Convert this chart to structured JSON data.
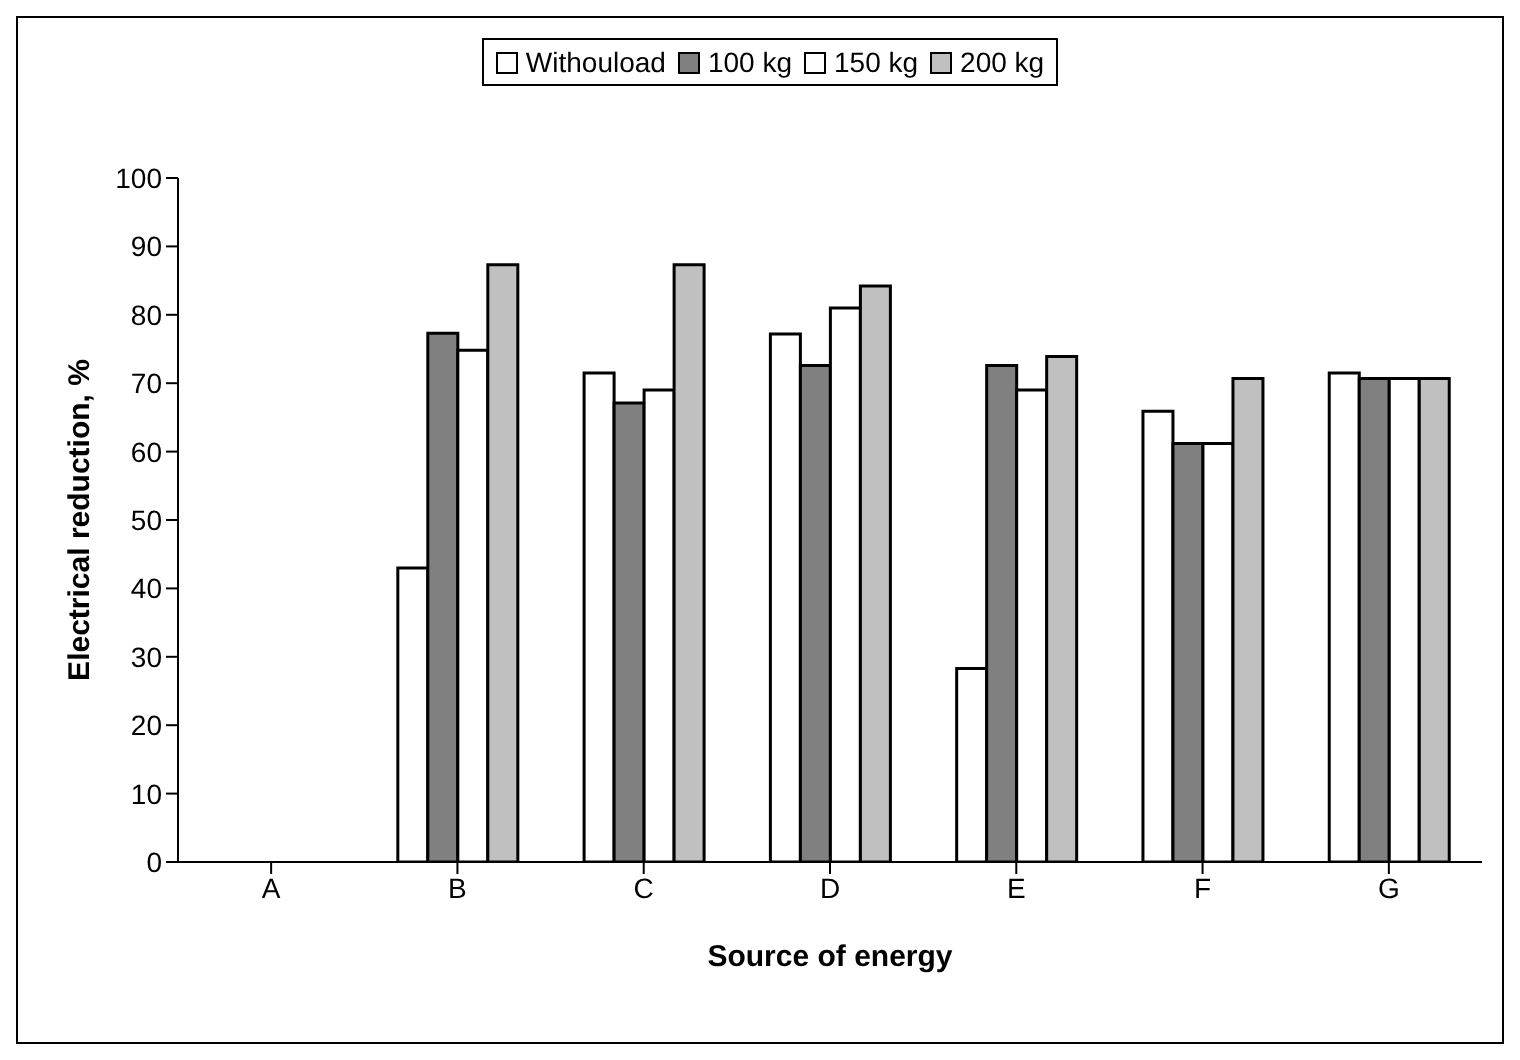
{
  "chart_data": {
    "type": "bar",
    "xlabel": "Source of energy",
    "ylabel": "Electrical  reduction, %",
    "categories": [
      "A",
      "B",
      "C",
      "D",
      "E",
      "F",
      "G"
    ],
    "series": [
      {
        "name": "Withouload",
        "color": "#ffffff",
        "values": [
          0,
          43,
          71.5,
          77.2,
          28.3,
          65.9,
          71.5
        ]
      },
      {
        "name": "100 kg",
        "color": "#808080",
        "values": [
          0,
          77.3,
          67.1,
          72.6,
          72.6,
          61.2,
          70.7
        ]
      },
      {
        "name": "150 kg",
        "color": "#ffffff",
        "values": [
          0,
          74.8,
          69,
          81,
          69,
          61.2,
          70.7
        ]
      },
      {
        "name": "200 kg",
        "color": "#c0c0c0",
        "values": [
          0,
          87.3,
          87.3,
          84.2,
          73.9,
          70.7,
          70.7
        ]
      }
    ],
    "ylim": [
      0,
      100
    ],
    "yticks": [
      0,
      10,
      20,
      30,
      40,
      50,
      60,
      70,
      80,
      90,
      100
    ],
    "grid": false,
    "legend": "top"
  }
}
